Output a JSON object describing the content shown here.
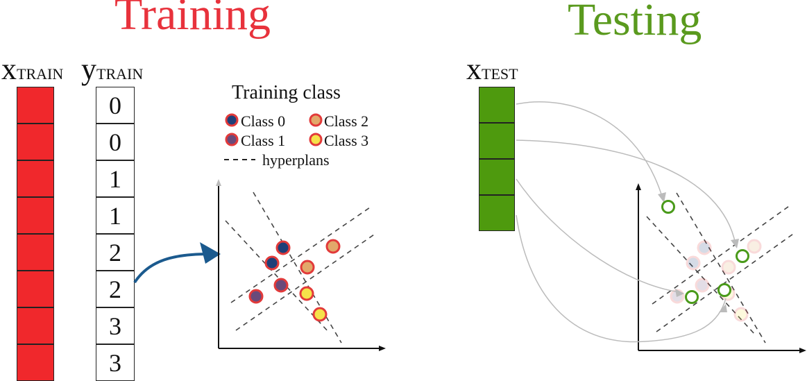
{
  "training": {
    "title": "Training",
    "title_color": "#e8323c",
    "x_label": {
      "main": "x",
      "sub": "TRAIN"
    },
    "y_label": {
      "main": "y",
      "sub": "TRAIN"
    },
    "x_color": "#f0282c",
    "y_values": [
      "0",
      "0",
      "1",
      "1",
      "2",
      "2",
      "3",
      "3"
    ],
    "legend": {
      "title": "Training class",
      "items": [
        {
          "label": "Class 0",
          "fill": "#1f3f78",
          "stroke": "#e23a3a"
        },
        {
          "label": "Class 1",
          "fill": "#6a4a7a",
          "stroke": "#e23a3a"
        },
        {
          "label": "Class 2",
          "fill": "#e2a86a",
          "stroke": "#e23a3a"
        },
        {
          "label": "Class 3",
          "fill": "#f6e24a",
          "stroke": "#e23a3a"
        }
      ],
      "hyperplans_label": "hyperplans"
    },
    "arrow_color": "#1b5a8e"
  },
  "testing": {
    "title": "Testing",
    "title_color": "#5a9a1e",
    "x_label": {
      "main": "x",
      "sub": "TEST"
    },
    "x_color": "#4e9a0e",
    "point_color": "#4a9a1a"
  }
}
